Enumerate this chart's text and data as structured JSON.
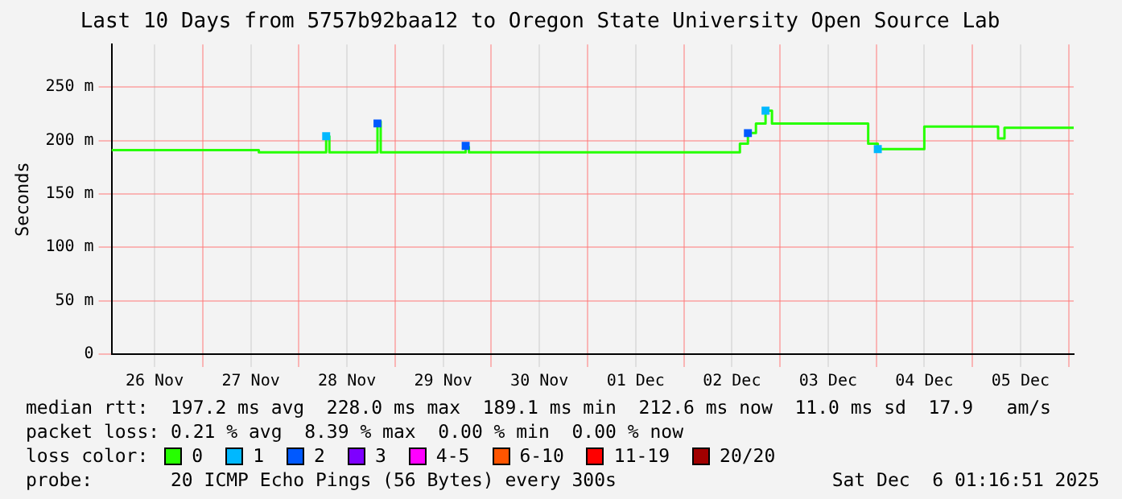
{
  "chart_data": {
    "type": "step",
    "title": "Last 10 Days from 5757b92baa12 to Oregon State University Open Source Lab",
    "ylabel": "Seconds",
    "legend": "bottom",
    "legend_title": "loss color:",
    "grid": true,
    "xlim": [
      "2025-11-26T01:16",
      "2025-12-06T01:16"
    ],
    "xticks": [
      {
        "value": "2025-11-26T12:00",
        "label": "26 Nov"
      },
      {
        "value": "2025-11-27T00:00",
        "label": null
      },
      {
        "value": "2025-11-27T12:00",
        "label": "27 Nov"
      },
      {
        "value": "2025-11-28T00:00",
        "label": null
      },
      {
        "value": "2025-11-28T12:00",
        "label": "28 Nov"
      },
      {
        "value": "2025-11-29T00:00",
        "label": null
      },
      {
        "value": "2025-11-29T12:00",
        "label": "29 Nov"
      },
      {
        "value": "2025-11-30T00:00",
        "label": null
      },
      {
        "value": "2025-11-30T12:00",
        "label": "30 Nov"
      },
      {
        "value": "2025-12-01T00:00",
        "label": null
      },
      {
        "value": "2025-12-01T12:00",
        "label": "01 Dec"
      },
      {
        "value": "2025-12-02T00:00",
        "label": null
      },
      {
        "value": "2025-12-02T12:00",
        "label": "02 Dec"
      },
      {
        "value": "2025-12-03T00:00",
        "label": null
      },
      {
        "value": "2025-12-03T12:00",
        "label": "03 Dec"
      },
      {
        "value": "2025-12-04T00:00",
        "label": null
      },
      {
        "value": "2025-12-04T12:00",
        "label": "04 Dec"
      },
      {
        "value": "2025-12-05T00:00",
        "label": null
      },
      {
        "value": "2025-12-05T12:00",
        "label": "05 Dec"
      },
      {
        "value": "2025-12-06T00:00",
        "label": null
      }
    ],
    "ylim": [
      0,
      290
    ],
    "yticks": [
      0,
      {
        "value": 50,
        "label": "50 m"
      },
      {
        "value": 100,
        "label": "100 m"
      },
      {
        "value": 150,
        "label": "150 m"
      },
      {
        "value": 200,
        "label": "200 m"
      },
      {
        "value": 250,
        "label": "250 m"
      }
    ],
    "series": [
      {
        "name": "0",
        "color": "#26ff00",
        "marker": "none",
        "x": [
          "2025-11-26T01:16",
          "2025-11-27T14:00",
          "2025-11-28T06:48",
          "2025-11-28T07:36",
          "2025-11-28T19:36",
          "2025-11-28T20:24",
          "2025-11-29T17:36",
          "2025-11-29T18:24",
          "2025-12-02T14:00",
          "2025-12-02T16:00",
          "2025-12-02T18:00",
          "2025-12-02T20:24",
          "2025-12-02T22:00",
          "2025-12-03T22:00",
          "2025-12-04T00:24",
          "2025-12-04T12:00",
          "2025-12-05T06:24",
          "2025-12-05T08:00",
          "2025-12-06T01:16"
        ],
        "values": [
          191,
          189,
          204,
          189,
          218,
          189,
          194,
          189,
          197,
          207,
          216,
          228,
          216,
          197,
          192,
          213,
          202,
          212,
          213
        ]
      },
      {
        "name": "1",
        "type": "scatter",
        "color": "#00b8ff",
        "marker": "square",
        "x": [
          "2025-11-28T06:48",
          "2025-12-02T20:24",
          "2025-12-04T00:24"
        ],
        "values": [
          204,
          228,
          192
        ]
      },
      {
        "name": "2",
        "type": "scatter",
        "color": "#0059ff",
        "marker": "square",
        "x": [
          "2025-11-28T19:36",
          "2025-11-29T17:36",
          "2025-12-02T16:00"
        ],
        "values": [
          216,
          195,
          207
        ]
      },
      {
        "name": "3",
        "type": "scatter",
        "color": "#7e00ff",
        "marker": "square"
      },
      {
        "name": "4-5",
        "type": "scatter",
        "color": "#ff00ff",
        "marker": "square"
      },
      {
        "name": "6-10",
        "type": "scatter",
        "color": "#ff5500",
        "marker": "square"
      },
      {
        "name": "11-19",
        "type": "scatter",
        "color": "#ff0000",
        "marker": "square"
      },
      {
        "name": "20/20",
        "type": "scatter",
        "color": "#a10000",
        "marker": "square"
      }
    ],
    "annotations": [
      "median rtt:  197.2 ms avg  228.0 ms max  189.1 ms min  212.6 ms now  11.0 ms sd  17.9   am/s",
      "packet loss: 0.21 % avg  8.39 % max  0.00 % min  0.00 % now",
      "probe:       20 ICMP Echo Pings (56 Bytes) every 300s",
      "Sat Dec  6 01:16:51 2025"
    ]
  }
}
